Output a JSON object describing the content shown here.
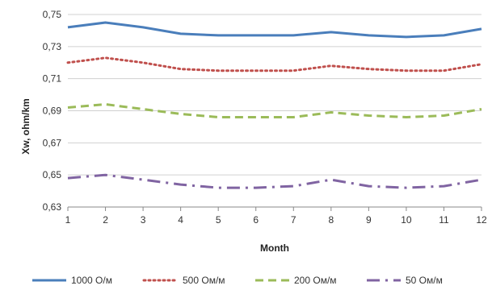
{
  "chart_data": {
    "type": "line",
    "title": "",
    "xlabel": "Month",
    "ylabel": "Xw, ohm/km",
    "x": [
      1,
      2,
      3,
      4,
      5,
      6,
      7,
      8,
      9,
      10,
      11,
      12
    ],
    "x_tick_labels": [
      "1",
      "2",
      "3",
      "4",
      "5",
      "6",
      "7",
      "8",
      "9",
      "10",
      "11",
      "12"
    ],
    "ylim": [
      0.63,
      0.75
    ],
    "y_ticks": [
      0.63,
      0.65,
      0.67,
      0.69,
      0.71,
      0.73,
      0.75
    ],
    "y_tick_labels": [
      "0,63",
      "0,65",
      "0,67",
      "0,69",
      "0,71",
      "0,73",
      "0,75"
    ],
    "grid": "horizontal",
    "legend_position": "bottom",
    "series": [
      {
        "name": "1000 О/м",
        "values": [
          0.742,
          0.745,
          0.742,
          0.738,
          0.737,
          0.737,
          0.737,
          0.739,
          0.737,
          0.736,
          0.737,
          0.741
        ],
        "color": "#4A7EBB",
        "style": "solid"
      },
      {
        "name": "500 Ом/м",
        "values": [
          0.72,
          0.723,
          0.72,
          0.716,
          0.715,
          0.715,
          0.715,
          0.718,
          0.716,
          0.715,
          0.715,
          0.719
        ],
        "color": "#C0504D",
        "style": "dotted"
      },
      {
        "name": "200 Ом/м",
        "values": [
          0.692,
          0.694,
          0.691,
          0.688,
          0.686,
          0.686,
          0.686,
          0.689,
          0.687,
          0.686,
          0.687,
          0.691
        ],
        "color": "#9BBB59",
        "style": "dashed"
      },
      {
        "name": "50 Ом/м",
        "values": [
          0.648,
          0.65,
          0.647,
          0.644,
          0.642,
          0.642,
          0.643,
          0.647,
          0.643,
          0.642,
          0.643,
          0.647
        ],
        "color": "#8064A2",
        "style": "dashdot"
      }
    ]
  }
}
